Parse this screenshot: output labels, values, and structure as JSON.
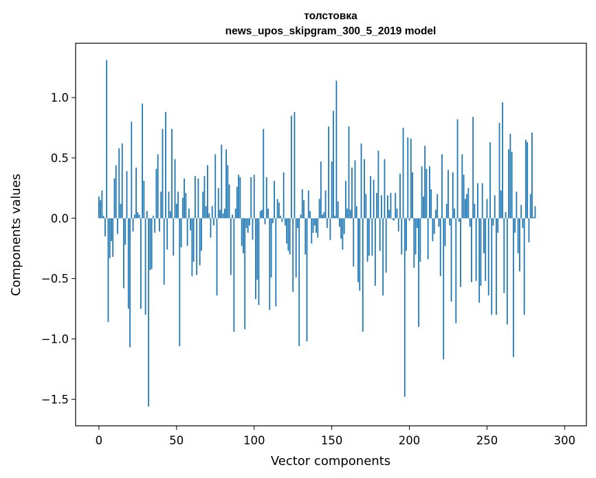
{
  "chart_data": {
    "type": "bar",
    "title": "толстовка",
    "subtitle": "news_upos_skipgram_300_5_2019 model",
    "xlabel": "Vector components",
    "ylabel": "Components values",
    "xlim": [
      -15,
      314
    ],
    "ylim": [
      -1.72,
      1.45
    ],
    "xticks": [
      0,
      50,
      100,
      150,
      200,
      250,
      300
    ],
    "xtick_labels": [
      "0",
      "50",
      "100",
      "150",
      "200",
      "250",
      "300"
    ],
    "yticks": [
      -1.5,
      -1.0,
      -0.5,
      0.0,
      0.5,
      1.0
    ],
    "ytick_labels": [
      "−1.5",
      "−1.0",
      "−0.5",
      "0.0",
      "0.5",
      "1.0"
    ],
    "bar_color": "#1f77b4",
    "series": [
      {
        "name": "толстовка",
        "values": [
          0.18,
          0.15,
          0.23,
          0.02,
          -0.15,
          1.31,
          -0.86,
          -0.33,
          -0.19,
          -0.32,
          0.33,
          0.44,
          -0.13,
          0.58,
          0.12,
          0.62,
          -0.58,
          -0.22,
          0.39,
          -0.75,
          -1.07,
          0.8,
          -0.11,
          0.03,
          0.42,
          0.05,
          0.03,
          -0.75,
          0.95,
          0.31,
          -0.8,
          0.06,
          -1.56,
          -0.43,
          -0.42,
          0.02,
          -0.12,
          0.41,
          0.53,
          -0.11,
          0.22,
          0.74,
          -0.55,
          0.88,
          -0.26,
          0.22,
          0.06,
          0.74,
          -0.31,
          0.49,
          0.12,
          0.22,
          -1.06,
          -0.24,
          0.17,
          0.33,
          0.21,
          -0.23,
          0.08,
          -0.1,
          -0.48,
          -0.36,
          0.35,
          -0.47,
          0.33,
          -0.39,
          -0.27,
          0.22,
          0.35,
          0.1,
          0.44,
          0.04,
          -0.16,
          0.1,
          -0.06,
          0.53,
          -0.64,
          0.25,
          0.07,
          0.61,
          0.04,
          0.08,
          0.57,
          0.44,
          0.28,
          -0.47,
          0.03,
          -0.94,
          0.08,
          0.26,
          0.36,
          0.34,
          -0.23,
          -0.29,
          -0.92,
          -0.08,
          -0.12,
          -0.06,
          0.34,
          -0.18,
          0.36,
          -0.67,
          -0.51,
          -0.72,
          0.06,
          0.07,
          0.74,
          -0.05,
          0.34,
          0.08,
          -0.76,
          -0.49,
          -0.04,
          0.31,
          -0.73,
          0.16,
          0.13,
          0.02,
          -0.03,
          0.38,
          -0.06,
          -0.21,
          -0.27,
          -0.3,
          0.85,
          -0.61,
          0.88,
          -0.49,
          -0.08,
          -1.06,
          0.03,
          0.24,
          0.15,
          -0.3,
          -1.02,
          0.23,
          0.06,
          -0.21,
          -0.12,
          -0.06,
          -0.12,
          -0.16,
          0.16,
          0.47,
          0.03,
          0.05,
          0.23,
          -0.08,
          0.76,
          -0.18,
          0.47,
          0.89,
          0.02,
          1.14,
          0.14,
          -0.07,
          -0.17,
          -0.26,
          -0.13,
          0.31,
          0.08,
          0.76,
          0.07,
          0.42,
          -0.4,
          0.48,
          0.1,
          -0.53,
          -0.6,
          0.62,
          -0.94,
          0.49,
          0.2,
          -0.36,
          -0.31,
          0.35,
          -0.31,
          0.32,
          -0.56,
          0.21,
          0.56,
          -0.27,
          0.19,
          -0.64,
          0.49,
          -0.45,
          0.19,
          0.07,
          0.21,
          -0.01,
          -0.02,
          0.21,
          0.08,
          -0.11,
          0.37,
          -0.3,
          0.75,
          -1.48,
          -0.27,
          0.67,
          -0.02,
          0.66,
          0.38,
          -0.41,
          -0.3,
          -0.08,
          -0.9,
          -0.36,
          0.43,
          0.18,
          0.6,
          0.41,
          -0.34,
          0.43,
          0.24,
          -0.19,
          -0.13,
          0.07,
          0.2,
          -0.07,
          -0.48,
          0.53,
          -1.17,
          -0.23,
          0.12,
          0.4,
          -0.06,
          -0.69,
          0.38,
          0.08,
          -0.87,
          0.82,
          -0.03,
          -0.57,
          0.53,
          0.36,
          0.16,
          0.2,
          0.25,
          -0.07,
          -0.53,
          0.84,
          0.12,
          -0.52,
          0.29,
          -0.7,
          -0.56,
          0.29,
          -0.29,
          -0.52,
          0.16,
          -0.64,
          0.63,
          -0.8,
          -0.06,
          0.19,
          -0.8,
          -0.12,
          0.79,
          0.23,
          0.96,
          -0.62,
          0.05,
          -0.88,
          0.57,
          0.7,
          0.55,
          -1.15,
          -0.12,
          0.22,
          -0.29,
          -0.44,
          0.11,
          -0.08,
          -0.8,
          0.65,
          0.63,
          -0.2,
          0.2,
          0.71,
          0.01,
          0.1
        ]
      }
    ]
  }
}
